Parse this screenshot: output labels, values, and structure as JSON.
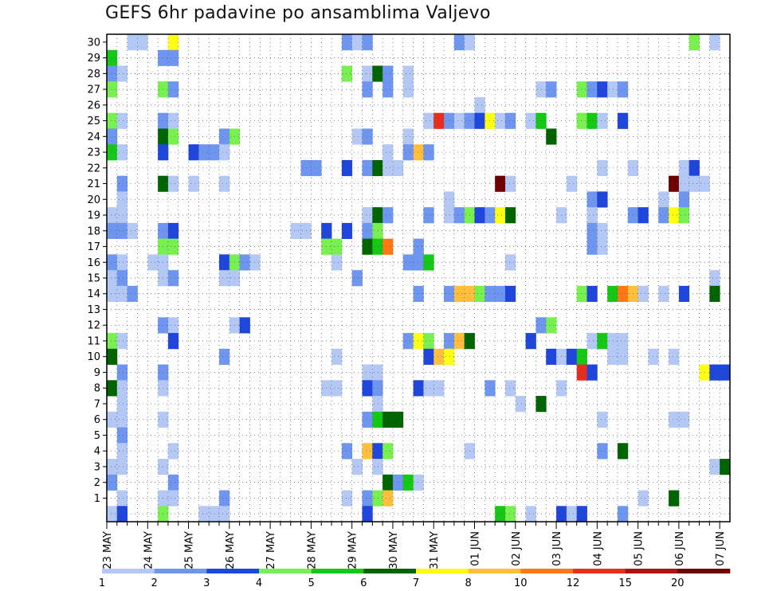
{
  "chart_data": {
    "type": "heatmap",
    "title": "GEFS 6hr padavine po ansamblima Valjevo",
    "x_tick_labels": [
      "23 MAY",
      "24 MAY",
      "25 MAY",
      "26 MAY",
      "27 MAY",
      "28 MAY",
      "29 MAY",
      "30 MAY",
      "31 MAY",
      "01 JUN",
      "02 JUN",
      "03 JUN",
      "04 JUN",
      "05 JUN",
      "06 JUN",
      "07 JUN"
    ],
    "x_time_steps": 61,
    "y_tick_labels": [
      "1",
      "2",
      "3",
      "4",
      "5",
      "6",
      "7",
      "8",
      "9",
      "10",
      "11",
      "12",
      "13",
      "14",
      "15",
      "16",
      "17",
      "18",
      "19",
      "20",
      "21",
      "22",
      "23",
      "24",
      "25",
      "26",
      "27",
      "28",
      "29",
      "30"
    ],
    "grid": true,
    "colorbar": {
      "position": "bottom",
      "boundary_labels": [
        "1",
        "2",
        "3",
        "4",
        "5",
        "6",
        "7",
        "8",
        "10",
        "12",
        "15",
        "20"
      ],
      "colors": [
        "#b4c8f5",
        "#6e96f0",
        "#1e46dc",
        "#78f050",
        "#14c814",
        "#006400",
        "#ffff14",
        "#ffbe3c",
        "#ff7814",
        "#e62d1e",
        "#aa1414",
        "#6e0000"
      ]
    },
    "cells_format": "[time_step, ensemble_member, color_bin]",
    "cells": [
      [
        2,
        30,
        1
      ],
      [
        3,
        30,
        1
      ],
      [
        6,
        30,
        7
      ],
      [
        23,
        30,
        2
      ],
      [
        24,
        30,
        1
      ],
      [
        25,
        30,
        2
      ],
      [
        34,
        30,
        2
      ],
      [
        35,
        30,
        1
      ],
      [
        57,
        30,
        4
      ],
      [
        59,
        30,
        1
      ],
      [
        0,
        29,
        5
      ],
      [
        5,
        29,
        2
      ],
      [
        6,
        29,
        2
      ],
      [
        0,
        28,
        2
      ],
      [
        1,
        28,
        1
      ],
      [
        23,
        28,
        4
      ],
      [
        25,
        28,
        1
      ],
      [
        26,
        28,
        6
      ],
      [
        27,
        28,
        2
      ],
      [
        29,
        28,
        1
      ],
      [
        0,
        27,
        4
      ],
      [
        5,
        27,
        4
      ],
      [
        6,
        27,
        2
      ],
      [
        25,
        27,
        2
      ],
      [
        27,
        27,
        2
      ],
      [
        29,
        27,
        1
      ],
      [
        42,
        27,
        1
      ],
      [
        43,
        27,
        2
      ],
      [
        46,
        27,
        4
      ],
      [
        47,
        27,
        2
      ],
      [
        48,
        27,
        3
      ],
      [
        49,
        27,
        1
      ],
      [
        50,
        27,
        2
      ],
      [
        36,
        26,
        1
      ],
      [
        0,
        25,
        4
      ],
      [
        1,
        25,
        1
      ],
      [
        5,
        25,
        2
      ],
      [
        6,
        25,
        1
      ],
      [
        31,
        25,
        1
      ],
      [
        32,
        25,
        10
      ],
      [
        33,
        25,
        2
      ],
      [
        34,
        25,
        1
      ],
      [
        35,
        25,
        2
      ],
      [
        36,
        25,
        3
      ],
      [
        37,
        25,
        7
      ],
      [
        38,
        25,
        1
      ],
      [
        39,
        25,
        2
      ],
      [
        41,
        25,
        1
      ],
      [
        42,
        25,
        5
      ],
      [
        46,
        25,
        4
      ],
      [
        47,
        25,
        5
      ],
      [
        48,
        25,
        1
      ],
      [
        50,
        25,
        3
      ],
      [
        0,
        24,
        2
      ],
      [
        5,
        24,
        6
      ],
      [
        6,
        24,
        4
      ],
      [
        11,
        24,
        2
      ],
      [
        12,
        24,
        4
      ],
      [
        24,
        24,
        1
      ],
      [
        25,
        24,
        2
      ],
      [
        29,
        24,
        1
      ],
      [
        43,
        24,
        6
      ],
      [
        0,
        23,
        5
      ],
      [
        1,
        23,
        1
      ],
      [
        5,
        23,
        3
      ],
      [
        8,
        23,
        3
      ],
      [
        9,
        23,
        2
      ],
      [
        10,
        23,
        2
      ],
      [
        11,
        23,
        1
      ],
      [
        27,
        23,
        1
      ],
      [
        29,
        23,
        2
      ],
      [
        30,
        23,
        8
      ],
      [
        31,
        23,
        2
      ],
      [
        19,
        22,
        2
      ],
      [
        20,
        22,
        2
      ],
      [
        23,
        22,
        3
      ],
      [
        25,
        22,
        2
      ],
      [
        26,
        22,
        6
      ],
      [
        27,
        22,
        1
      ],
      [
        28,
        22,
        1
      ],
      [
        48,
        22,
        1
      ],
      [
        51,
        22,
        1
      ],
      [
        56,
        22,
        1
      ],
      [
        57,
        22,
        3
      ],
      [
        1,
        21,
        2
      ],
      [
        5,
        21,
        6
      ],
      [
        6,
        21,
        1
      ],
      [
        8,
        21,
        1
      ],
      [
        11,
        21,
        1
      ],
      [
        38,
        21,
        12
      ],
      [
        39,
        21,
        1
      ],
      [
        45,
        21,
        1
      ],
      [
        55,
        21,
        12
      ],
      [
        56,
        21,
        1
      ],
      [
        57,
        21,
        1
      ],
      [
        58,
        21,
        1
      ],
      [
        1,
        20,
        1
      ],
      [
        33,
        20,
        1
      ],
      [
        47,
        20,
        2
      ],
      [
        48,
        20,
        3
      ],
      [
        54,
        20,
        1
      ],
      [
        56,
        20,
        2
      ],
      [
        0,
        19,
        1
      ],
      [
        1,
        19,
        1
      ],
      [
        25,
        19,
        1
      ],
      [
        26,
        19,
        6
      ],
      [
        27,
        19,
        2
      ],
      [
        31,
        19,
        2
      ],
      [
        33,
        19,
        1
      ],
      [
        34,
        19,
        2
      ],
      [
        35,
        19,
        4
      ],
      [
        36,
        19,
        3
      ],
      [
        37,
        19,
        2
      ],
      [
        38,
        19,
        7
      ],
      [
        39,
        19,
        6
      ],
      [
        44,
        19,
        1
      ],
      [
        47,
        19,
        1
      ],
      [
        51,
        19,
        2
      ],
      [
        52,
        19,
        3
      ],
      [
        54,
        19,
        2
      ],
      [
        55,
        19,
        7
      ],
      [
        56,
        19,
        4
      ],
      [
        0,
        18,
        2
      ],
      [
        1,
        18,
        2
      ],
      [
        2,
        18,
        1
      ],
      [
        5,
        18,
        2
      ],
      [
        6,
        18,
        3
      ],
      [
        18,
        18,
        1
      ],
      [
        19,
        18,
        1
      ],
      [
        21,
        18,
        3
      ],
      [
        23,
        18,
        3
      ],
      [
        25,
        18,
        2
      ],
      [
        26,
        18,
        4
      ],
      [
        47,
        18,
        2
      ],
      [
        48,
        18,
        1
      ],
      [
        5,
        17,
        4
      ],
      [
        6,
        17,
        4
      ],
      [
        21,
        17,
        4
      ],
      [
        22,
        17,
        4
      ],
      [
        25,
        17,
        6
      ],
      [
        26,
        17,
        5
      ],
      [
        27,
        17,
        9
      ],
      [
        30,
        17,
        2
      ],
      [
        47,
        17,
        2
      ],
      [
        48,
        17,
        1
      ],
      [
        0,
        16,
        2
      ],
      [
        1,
        16,
        1
      ],
      [
        4,
        16,
        1
      ],
      [
        5,
        16,
        1
      ],
      [
        11,
        16,
        3
      ],
      [
        12,
        16,
        4
      ],
      [
        13,
        16,
        2
      ],
      [
        14,
        16,
        1
      ],
      [
        22,
        16,
        1
      ],
      [
        29,
        16,
        2
      ],
      [
        30,
        16,
        2
      ],
      [
        31,
        16,
        5
      ],
      [
        39,
        16,
        1
      ],
      [
        0,
        15,
        1
      ],
      [
        1,
        15,
        2
      ],
      [
        5,
        15,
        1
      ],
      [
        6,
        15,
        2
      ],
      [
        11,
        15,
        1
      ],
      [
        12,
        15,
        1
      ],
      [
        24,
        15,
        2
      ],
      [
        59,
        15,
        1
      ],
      [
        0,
        14,
        1
      ],
      [
        1,
        14,
        1
      ],
      [
        2,
        14,
        2
      ],
      [
        30,
        14,
        2
      ],
      [
        33,
        14,
        2
      ],
      [
        34,
        14,
        8
      ],
      [
        35,
        14,
        8
      ],
      [
        36,
        14,
        4
      ],
      [
        37,
        14,
        2
      ],
      [
        38,
        14,
        2
      ],
      [
        39,
        14,
        3
      ],
      [
        46,
        14,
        4
      ],
      [
        47,
        14,
        3
      ],
      [
        49,
        14,
        5
      ],
      [
        50,
        14,
        9
      ],
      [
        51,
        14,
        8
      ],
      [
        52,
        14,
        1
      ],
      [
        54,
        14,
        1
      ],
      [
        56,
        14,
        3
      ],
      [
        59,
        14,
        6
      ],
      [
        5,
        12,
        2
      ],
      [
        6,
        12,
        1
      ],
      [
        12,
        12,
        1
      ],
      [
        13,
        12,
        3
      ],
      [
        42,
        12,
        2
      ],
      [
        43,
        12,
        4
      ],
      [
        0,
        11,
        4
      ],
      [
        1,
        11,
        1
      ],
      [
        6,
        11,
        3
      ],
      [
        29,
        11,
        2
      ],
      [
        30,
        11,
        7
      ],
      [
        31,
        11,
        4
      ],
      [
        33,
        11,
        2
      ],
      [
        34,
        11,
        8
      ],
      [
        35,
        11,
        6
      ],
      [
        41,
        11,
        3
      ],
      [
        47,
        11,
        1
      ],
      [
        48,
        11,
        5
      ],
      [
        49,
        11,
        1
      ],
      [
        50,
        11,
        1
      ],
      [
        0,
        10,
        6
      ],
      [
        11,
        10,
        2
      ],
      [
        22,
        10,
        1
      ],
      [
        31,
        10,
        3
      ],
      [
        32,
        10,
        8
      ],
      [
        33,
        10,
        7
      ],
      [
        43,
        10,
        3
      ],
      [
        44,
        10,
        1
      ],
      [
        45,
        10,
        3
      ],
      [
        46,
        10,
        5
      ],
      [
        49,
        10,
        1
      ],
      [
        50,
        10,
        1
      ],
      [
        53,
        10,
        1
      ],
      [
        55,
        10,
        1
      ],
      [
        1,
        9,
        2
      ],
      [
        5,
        9,
        2
      ],
      [
        25,
        9,
        1
      ],
      [
        26,
        9,
        1
      ],
      [
        46,
        9,
        10
      ],
      [
        47,
        9,
        3
      ],
      [
        58,
        9,
        7
      ],
      [
        59,
        9,
        3
      ],
      [
        60,
        9,
        3
      ],
      [
        0,
        8,
        6
      ],
      [
        1,
        8,
        1
      ],
      [
        5,
        8,
        1
      ],
      [
        21,
        8,
        1
      ],
      [
        22,
        8,
        1
      ],
      [
        25,
        8,
        3
      ],
      [
        26,
        8,
        2
      ],
      [
        30,
        8,
        3
      ],
      [
        31,
        8,
        1
      ],
      [
        32,
        8,
        1
      ],
      [
        37,
        8,
        2
      ],
      [
        39,
        8,
        1
      ],
      [
        44,
        8,
        1
      ],
      [
        1,
        7,
        1
      ],
      [
        26,
        7,
        1
      ],
      [
        40,
        7,
        1
      ],
      [
        42,
        7,
        6
      ],
      [
        0,
        6,
        1
      ],
      [
        1,
        6,
        1
      ],
      [
        5,
        6,
        1
      ],
      [
        25,
        6,
        2
      ],
      [
        26,
        6,
        5
      ],
      [
        27,
        6,
        6
      ],
      [
        28,
        6,
        6
      ],
      [
        48,
        6,
        1
      ],
      [
        55,
        6,
        1
      ],
      [
        56,
        6,
        1
      ],
      [
        1,
        5,
        2
      ],
      [
        1,
        4,
        1
      ],
      [
        6,
        4,
        1
      ],
      [
        23,
        4,
        2
      ],
      [
        25,
        4,
        8
      ],
      [
        26,
        4,
        3
      ],
      [
        27,
        4,
        4
      ],
      [
        35,
        4,
        1
      ],
      [
        48,
        4,
        2
      ],
      [
        50,
        4,
        6
      ],
      [
        0,
        3,
        1
      ],
      [
        1,
        3,
        1
      ],
      [
        5,
        3,
        1
      ],
      [
        24,
        3,
        1
      ],
      [
        26,
        3,
        1
      ],
      [
        59,
        3,
        1
      ],
      [
        60,
        3,
        6
      ],
      [
        0,
        2,
        2
      ],
      [
        6,
        2,
        2
      ],
      [
        27,
        2,
        6
      ],
      [
        28,
        2,
        2
      ],
      [
        29,
        2,
        5
      ],
      [
        30,
        2,
        1
      ],
      [
        1,
        1,
        1
      ],
      [
        5,
        1,
        1
      ],
      [
        6,
        1,
        1
      ],
      [
        11,
        1,
        2
      ],
      [
        23,
        1,
        1
      ],
      [
        25,
        1,
        2
      ],
      [
        26,
        1,
        4
      ],
      [
        27,
        1,
        8
      ],
      [
        52,
        1,
        1
      ],
      [
        55,
        1,
        6
      ],
      [
        0,
        0,
        1
      ],
      [
        1,
        0,
        3
      ],
      [
        5,
        0,
        4
      ],
      [
        9,
        0,
        1
      ],
      [
        10,
        0,
        1
      ],
      [
        11,
        0,
        1
      ],
      [
        25,
        0,
        3
      ],
      [
        38,
        0,
        5
      ],
      [
        39,
        0,
        4
      ],
      [
        41,
        0,
        1
      ],
      [
        44,
        0,
        3
      ],
      [
        45,
        0,
        1
      ],
      [
        46,
        0,
        3
      ],
      [
        50,
        0,
        2
      ]
    ]
  }
}
